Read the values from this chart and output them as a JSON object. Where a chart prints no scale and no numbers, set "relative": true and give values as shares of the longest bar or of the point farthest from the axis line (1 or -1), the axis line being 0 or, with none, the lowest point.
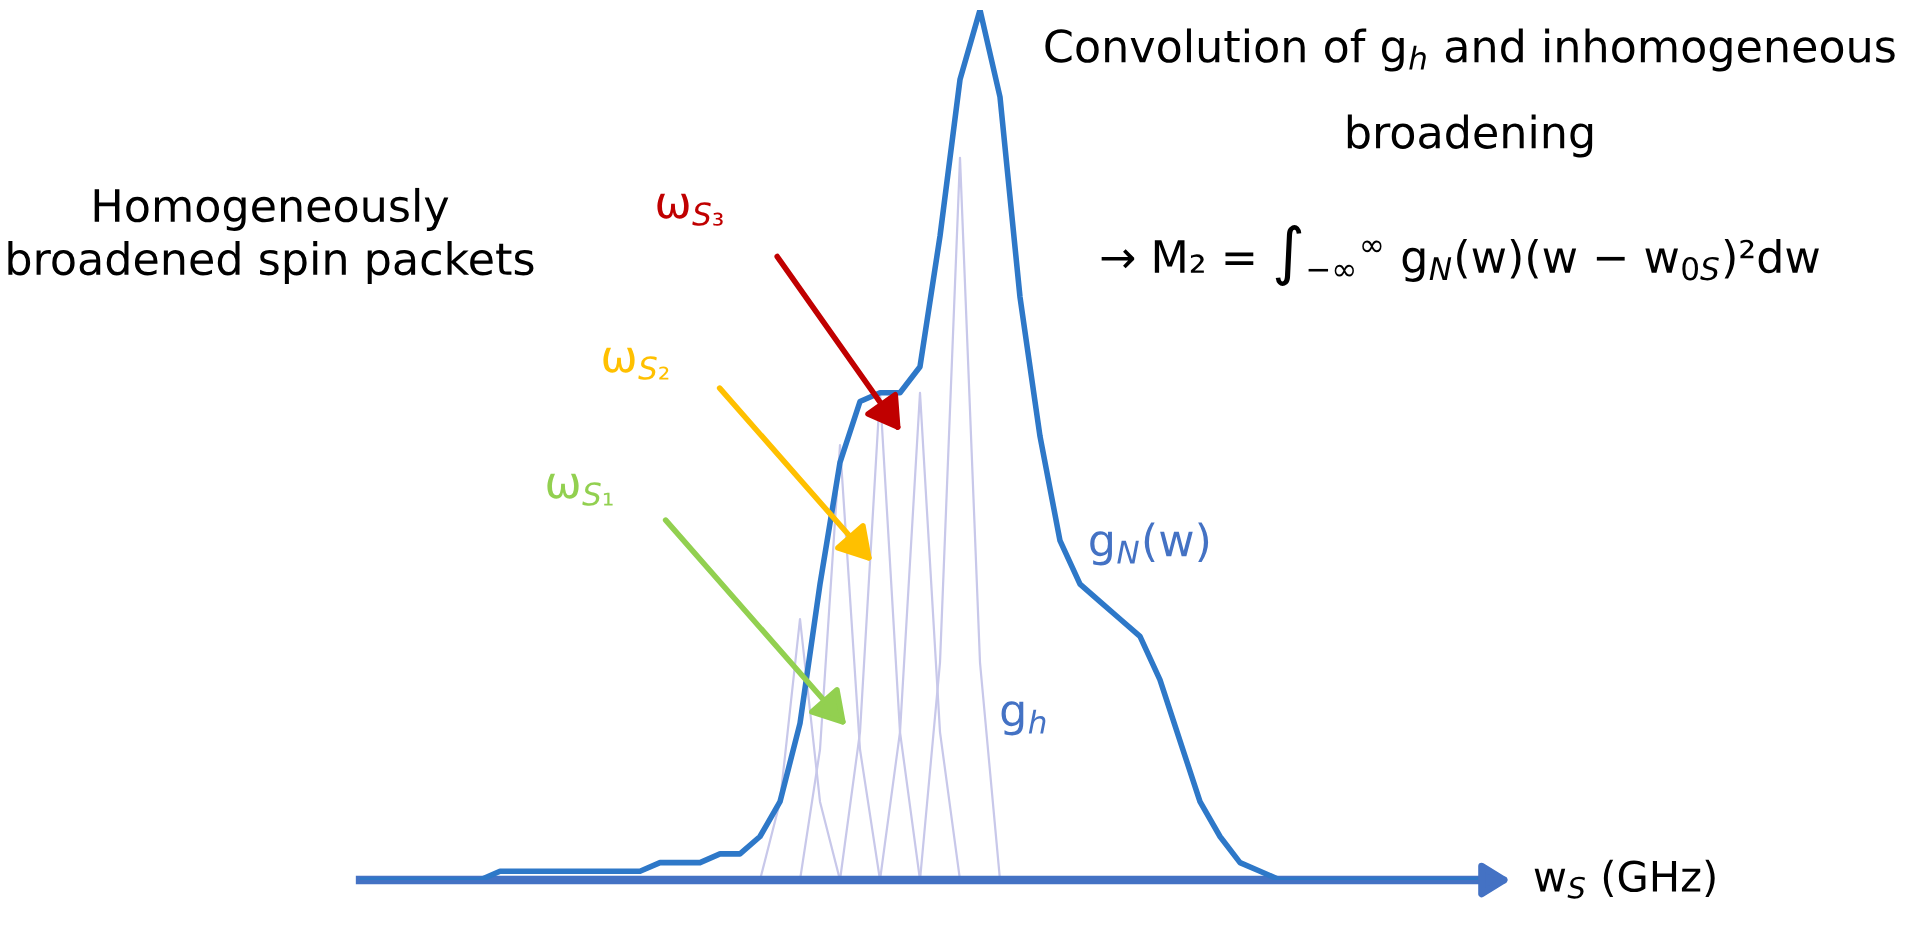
{
  "chart_data": {
    "type": "line",
    "relative": true,
    "xlabel": "w$_{S}$ (GHz)",
    "categories": [
      null,
      null,
      null,
      null,
      null,
      null,
      null,
      null,
      null,
      null,
      null,
      null,
      null,
      null,
      null,
      null,
      null,
      null,
      null,
      null,
      null,
      null,
      null,
      null,
      null,
      null,
      null,
      null,
      null,
      null,
      null,
      null,
      null,
      null,
      null,
      null,
      null,
      null,
      null,
      null,
      null,
      null,
      null,
      null,
      null,
      null,
      null,
      null,
      null,
      null,
      null,
      null,
      null,
      null,
      null,
      null,
      null
    ],
    "series": [
      {
        "color": "#2e78c8",
        "values": [
          0,
          0,
          0,
          0,
          0,
          0,
          0,
          0.01,
          0.01,
          0.01,
          0.01,
          0.01,
          0.01,
          0.01,
          0.01,
          0.02,
          0.02,
          0.02,
          0.03,
          0.03,
          0.05,
          0.09,
          0.18,
          0.34,
          0.48,
          0.55,
          0.56,
          0.56,
          0.59,
          0.74,
          0.92,
          1.0,
          0.9,
          0.67,
          0.51,
          0.39,
          0.34,
          0.32,
          0.3,
          0.28,
          0.23,
          0.16,
          0.09,
          0.05,
          0.02,
          0.01,
          0,
          0,
          0,
          0,
          0,
          0,
          0,
          0,
          0,
          0,
          0
        ]
      },
      {
        "color": "#c8c8ea",
        "values": [
          null,
          null,
          null,
          null,
          null,
          null,
          null,
          null,
          null,
          null,
          null,
          null,
          null,
          null,
          null,
          null,
          null,
          null,
          null,
          null,
          0,
          0.09,
          0.3,
          0.09,
          0,
          null,
          null,
          null,
          null,
          null,
          null,
          null,
          null,
          null,
          null,
          null,
          null,
          null,
          null,
          null,
          null,
          null,
          null,
          null,
          null,
          null,
          null,
          null,
          null,
          null,
          null,
          null,
          null,
          null,
          null,
          null,
          null
        ]
      },
      {
        "color": "#c8c8ea",
        "values": [
          null,
          null,
          null,
          null,
          null,
          null,
          null,
          null,
          null,
          null,
          null,
          null,
          null,
          null,
          null,
          null,
          null,
          null,
          null,
          null,
          null,
          null,
          0,
          0.15,
          0.5,
          0.15,
          0,
          null,
          null,
          null,
          null,
          null,
          null,
          null,
          null,
          null,
          null,
          null,
          null,
          null,
          null,
          null,
          null,
          null,
          null,
          null,
          null,
          null,
          null,
          null,
          null,
          null,
          null,
          null,
          null,
          null,
          null
        ]
      },
      {
        "color": "#c8c8ea",
        "values": [
          null,
          null,
          null,
          null,
          null,
          null,
          null,
          null,
          null,
          null,
          null,
          null,
          null,
          null,
          null,
          null,
          null,
          null,
          null,
          null,
          null,
          null,
          null,
          null,
          0,
          0.17,
          0.56,
          0.17,
          0,
          null,
          null,
          null,
          null,
          null,
          null,
          null,
          null,
          null,
          null,
          null,
          null,
          null,
          null,
          null,
          null,
          null,
          null,
          null,
          null,
          null,
          null,
          null,
          null,
          null,
          null,
          null,
          null
        ]
      },
      {
        "color": "#c8c8ea",
        "values": [
          null,
          null,
          null,
          null,
          null,
          null,
          null,
          null,
          null,
          null,
          null,
          null,
          null,
          null,
          null,
          null,
          null,
          null,
          null,
          null,
          null,
          null,
          null,
          null,
          null,
          null,
          0,
          0.17,
          0.56,
          0.17,
          0,
          null,
          null,
          null,
          null,
          null,
          null,
          null,
          null,
          null,
          null,
          null,
          null,
          null,
          null,
          null,
          null,
          null,
          null,
          null,
          null,
          null,
          null,
          null,
          null,
          null,
          null
        ]
      },
      {
        "color": "#c8c8ea",
        "values": [
          null,
          null,
          null,
          null,
          null,
          null,
          null,
          null,
          null,
          null,
          null,
          null,
          null,
          null,
          null,
          null,
          null,
          null,
          null,
          null,
          null,
          null,
          null,
          null,
          null,
          null,
          null,
          null,
          0,
          0.25,
          0.83,
          0.25,
          0,
          null,
          null,
          null,
          null,
          null,
          null,
          null,
          null,
          null,
          null,
          null,
          null,
          null,
          null,
          null,
          null,
          null,
          null,
          null,
          null,
          null,
          null,
          null,
          null
        ]
      }
    ],
    "annotations": [
      "Homogeneously\nbroadened spin packets",
      "ω$_{S₁}$",
      "ω$_{S₂}$",
      "ω$_{S₃}$",
      "Convolution of g$_{h}$ and inhomogeneous",
      "broadening",
      "→ M₂ = ∫$_{−∞}$$^{∞}$ g$_{N}$(w)(w − w$_{0S}$)²dw",
      "g$_{N}$(w)",
      "g$_{h}$"
    ],
    "grid": false,
    "legend": false,
    "marker": "none",
    "line_style": "solid"
  }
}
